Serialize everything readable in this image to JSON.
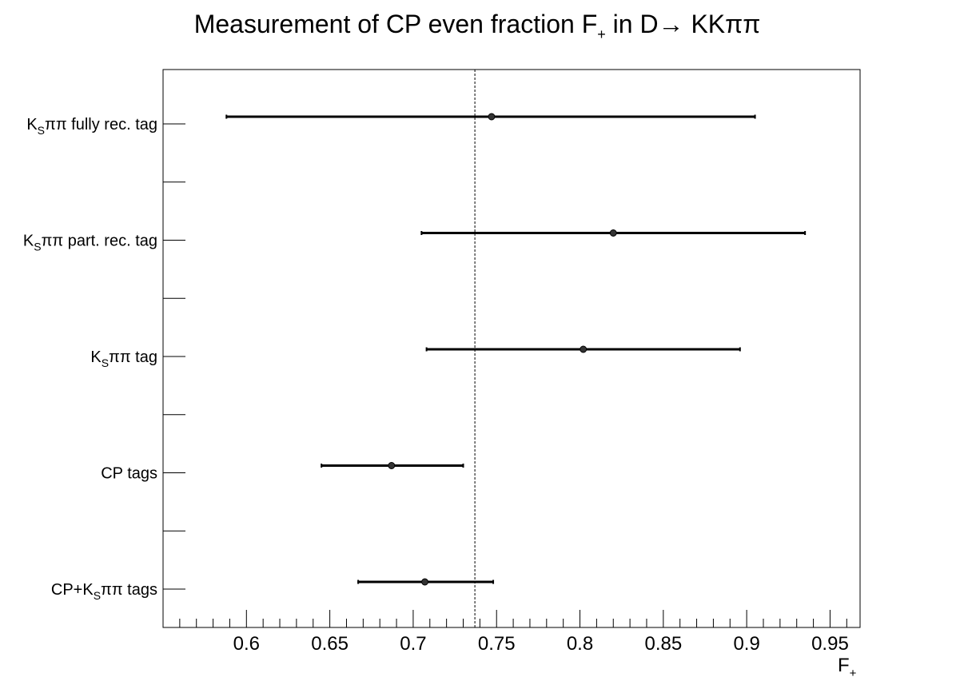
{
  "chart_data": {
    "type": "scatter",
    "title": {
      "main": "Measurement of CP even fraction F",
      "sub": "+",
      "mid": " in D",
      "arrow": "→",
      "end": " KKππ"
    },
    "xlabel": {
      "main": "F",
      "sub": "+"
    },
    "xlim": [
      0.55,
      0.968
    ],
    "x_ticks": [
      {
        "value": 0.6,
        "label": "0.6"
      },
      {
        "value": 0.65,
        "label": "0.65"
      },
      {
        "value": 0.7,
        "label": "0.7"
      },
      {
        "value": 0.75,
        "label": "0.75"
      },
      {
        "value": 0.8,
        "label": "0.8"
      },
      {
        "value": 0.85,
        "label": "0.85"
      },
      {
        "value": 0.9,
        "label": "0.9"
      },
      {
        "value": 0.95,
        "label": "0.95"
      }
    ],
    "reference_line": 0.737,
    "grid": false,
    "points": [
      {
        "label": [
          {
            "t": "K"
          },
          {
            "t": "S",
            "sub": true
          },
          {
            "t": "ππ fully rec. tag"
          }
        ],
        "value": 0.747,
        "low": 0.588,
        "high": 0.905
      },
      {
        "label": [
          {
            "t": "K"
          },
          {
            "t": "S",
            "sub": true
          },
          {
            "t": "ππ part. rec. tag"
          }
        ],
        "value": 0.82,
        "low": 0.705,
        "high": 0.935
      },
      {
        "label": [
          {
            "t": "K"
          },
          {
            "t": "S",
            "sub": true
          },
          {
            "t": "ππ tag"
          }
        ],
        "value": 0.802,
        "low": 0.708,
        "high": 0.896
      },
      {
        "label": [
          {
            "t": "CP tags"
          }
        ],
        "value": 0.687,
        "low": 0.645,
        "high": 0.73
      },
      {
        "label": [
          {
            "t": "CP+K"
          },
          {
            "t": "S",
            "sub": true
          },
          {
            "t": "ππ tags"
          }
        ],
        "value": 0.707,
        "low": 0.667,
        "high": 0.748
      }
    ]
  }
}
